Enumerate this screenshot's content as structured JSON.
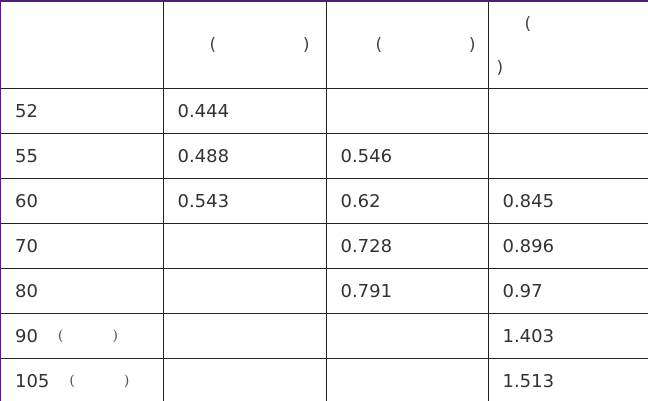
{
  "table": {
    "header": {
      "col0": "",
      "col1": {
        "open": "(",
        "close": ")"
      },
      "col2": {
        "open": "(",
        "close": ")"
      },
      "col3": {
        "open": "(",
        "close": ")"
      }
    },
    "rows": [
      {
        "label": "52",
        "label_paren": null,
        "c1": "0.444",
        "c2": "",
        "c3": ""
      },
      {
        "label": "55",
        "label_paren": null,
        "c1": "0.488",
        "c2": "0.546",
        "c3": ""
      },
      {
        "label": "60",
        "label_paren": null,
        "c1": "0.543",
        "c2": "0.62",
        "c3": "0.845"
      },
      {
        "label": "70",
        "label_paren": null,
        "c1": "",
        "c2": "0.728",
        "c3": "0.896"
      },
      {
        "label": "80",
        "label_paren": null,
        "c1": "",
        "c2": "0.791",
        "c3": "0.97"
      },
      {
        "label": "90",
        "label_paren": {
          "open": "(",
          "close": ")"
        },
        "c1": "",
        "c2": "",
        "c3": "1.403"
      },
      {
        "label": "105",
        "label_paren": {
          "open": "(",
          "close": ")"
        },
        "c1": "",
        "c2": "",
        "c3": "1.513"
      }
    ]
  },
  "colors": {
    "border_accent": "#4b1f7a",
    "grid": "#222222",
    "text": "#333333"
  }
}
